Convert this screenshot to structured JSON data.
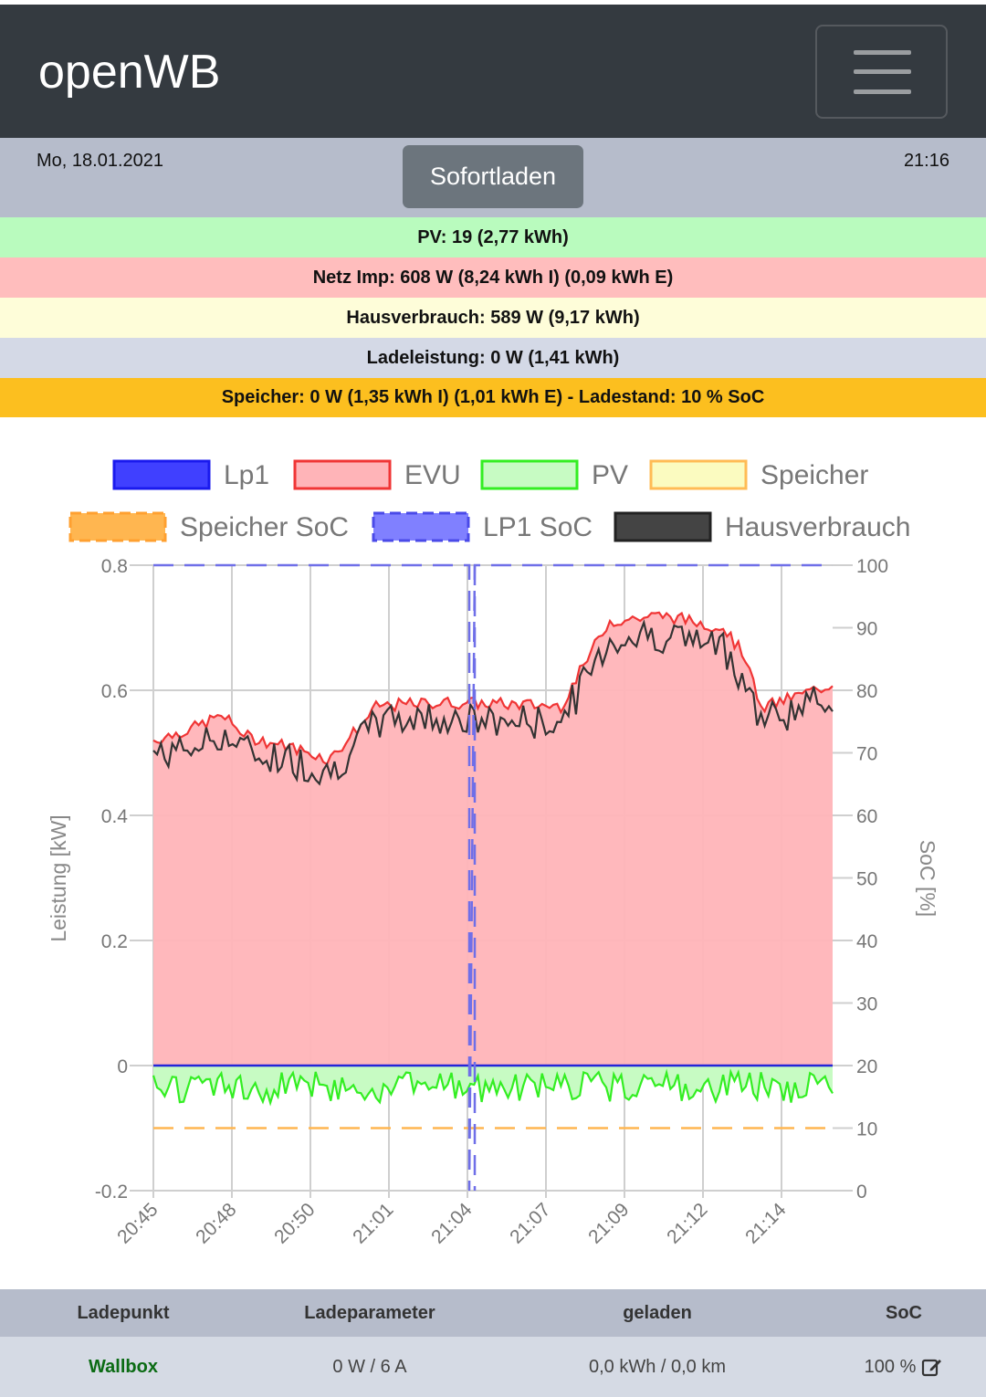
{
  "app": {
    "brand": "openWB",
    "menu_icon": "hamburger-menu-icon"
  },
  "info": {
    "date": "Mo, 18.01.2021",
    "time": "21:16",
    "button_label": "Sofortladen"
  },
  "stats": {
    "pv": "PV: 19 (2,77 kWh)",
    "netz": "Netz Imp: 608 W (8,24 kWh I) (0,09 kWh E)",
    "haus": "Hausverbrauch: 589 W (9,17 kWh)",
    "lade": "Ladeleistung: 0 W (1,41 kWh)",
    "speicher": "Speicher: 0 W (1,35 kWh I) (1,01 kWh E) - Ladestand: 10 % SoC"
  },
  "colors": {
    "navbar": "#343a40",
    "info": "#b6bccb",
    "pv_bg": "#b9fbbe",
    "netz_bg": "#ffbdbd",
    "haus_bg": "#fefdd9",
    "lade_bg": "#d4d9e6",
    "speicher_bg": "#fcbf1f",
    "evu_line": "#f03535",
    "evu_fill": "#ffb4b8",
    "pv_line": "#33ee22",
    "pv_fill": "#c7fbc3",
    "lp1": "#2020f0",
    "lp1_soc": "#6f6fe8",
    "speicher_soc": "#ffb650",
    "haus_line": "#333333"
  },
  "chart_data": {
    "type": "line",
    "legend": [
      "Lp1",
      "EVU",
      "PV",
      "Speicher",
      "Speicher SoC",
      "LP1 SoC",
      "Hausverbrauch"
    ],
    "ylabel": "Leistung [kW]",
    "y2label": "SoC [%]",
    "yticks": [
      "0.8",
      "0.6",
      "0.4",
      "0.2",
      "0",
      "-0.2"
    ],
    "y2ticks": [
      "100",
      "90",
      "80",
      "70",
      "60",
      "50",
      "40",
      "30",
      "20",
      "10",
      "0"
    ],
    "ylim": [
      -0.2,
      0.8
    ],
    "y2lim": [
      0,
      100
    ],
    "x_labels": [
      "20:45",
      "20:48",
      "20:50",
      "21:01",
      "21:04",
      "21:07",
      "21:09",
      "21:12",
      "21:14"
    ],
    "series": [
      {
        "name": "EVU",
        "anchors": [
          [
            0,
            0.52
          ],
          [
            0.06,
            0.54
          ],
          [
            0.1,
            0.56
          ],
          [
            0.14,
            0.525
          ],
          [
            0.2,
            0.51
          ],
          [
            0.26,
            0.49
          ],
          [
            0.33,
            0.575
          ],
          [
            0.42,
            0.58
          ],
          [
            0.46,
            0.58
          ],
          [
            0.6,
            0.575
          ],
          [
            0.67,
            0.71
          ],
          [
            0.75,
            0.72
          ],
          [
            0.84,
            0.7
          ],
          [
            0.88,
            0.64
          ],
          [
            0.89,
            0.57
          ],
          [
            1,
            0.61
          ]
        ]
      },
      {
        "name": "Hausverbrauch",
        "anchors": [
          [
            0,
            0.5
          ],
          [
            0.06,
            0.51
          ],
          [
            0.1,
            0.53
          ],
          [
            0.14,
            0.5
          ],
          [
            0.2,
            0.49
          ],
          [
            0.26,
            0.47
          ],
          [
            0.33,
            0.55
          ],
          [
            0.42,
            0.56
          ],
          [
            0.46,
            0.55
          ],
          [
            0.6,
            0.55
          ],
          [
            0.67,
            0.68
          ],
          [
            0.75,
            0.69
          ],
          [
            0.84,
            0.67
          ],
          [
            0.88,
            0.6
          ],
          [
            0.89,
            0.55
          ],
          [
            1,
            0.59
          ]
        ]
      },
      {
        "name": "PV",
        "value_approx": -0.02
      },
      {
        "name": "Lp1",
        "value": 0
      },
      {
        "name": "Speicher SoC",
        "soc": 10
      },
      {
        "name": "LP1 SoC",
        "soc": 100
      }
    ]
  },
  "table": {
    "headers": [
      "Ladepunkt",
      "Ladeparameter",
      "geladen",
      "SoC"
    ],
    "row": {
      "name": "Wallbox",
      "param": "0 W / 6 A",
      "geladen": "0,0 kWh / 0,0 km",
      "soc": "100 %"
    }
  }
}
